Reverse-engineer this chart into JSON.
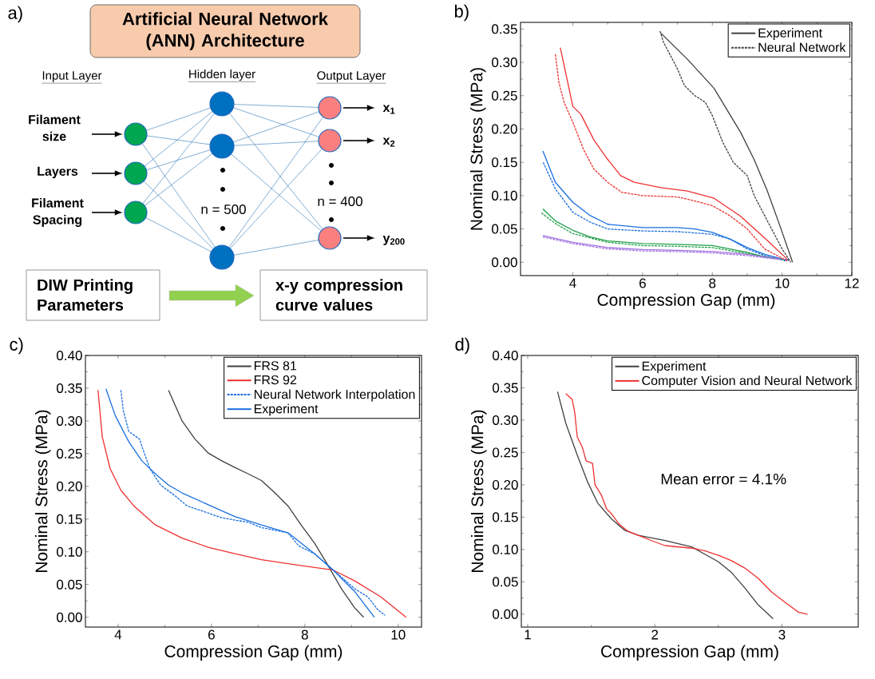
{
  "chart_data": [
    {
      "type": "other",
      "title": "Artificial Neural Network (ANN) Architecture",
      "annotations": [
        "a)",
        "Input Layer",
        "Hidden layer",
        "Output Layer",
        "Filament size",
        "Layers",
        "Filament Spacing",
        "n = 500",
        "n = 400",
        "x$_{1}$",
        "x$_{2}$",
        "y$_{200}$",
        "DIW Printing Parameters",
        "x-y compression curve values"
      ]
    },
    {
      "type": "line",
      "xlabel": "Compression Gap (mm)",
      "ylabel": "Nominal Stress (MPa)",
      "annotations": [
        "b)"
      ],
      "xlim": [
        2.5,
        12
      ],
      "ylim": [
        -0.02,
        0.36
      ],
      "xticks": [
        4,
        6,
        8,
        10,
        12
      ],
      "yticks": [
        {
          "value": 0,
          "label": "0.00"
        },
        {
          "value": 0.05,
          "label": "0.05"
        },
        {
          "value": 0.1,
          "label": "0.10"
        },
        {
          "value": 0.15,
          "label": "0.15"
        },
        {
          "value": 0.2,
          "label": "0.20"
        },
        {
          "value": 0.25,
          "label": "0.25"
        },
        {
          "value": 0.3,
          "label": "0.30"
        },
        {
          "value": 0.35,
          "label": "0.35"
        }
      ],
      "legend": "top right",
      "series": [
        {
          "name": "Experiment",
          "color": "#404040",
          "line_style": "solid",
          "x": [
            6.52,
            7.28,
            8.05,
            8.81,
            9.19,
            9.57,
            9.95,
            10.3
          ],
          "values": [
            0.344,
            0.305,
            0.261,
            0.195,
            0.155,
            0.108,
            0.053,
            0
          ]
        },
        {
          "name": "Neural Network",
          "color": "#404040",
          "line_style": "dashed",
          "x": [
            6.5,
            6.6,
            7.0,
            7.2,
            7.5,
            7.8,
            8.0,
            8.3,
            8.6,
            9.0,
            9.2,
            9.5,
            9.8,
            10.0,
            10.25
          ],
          "values": [
            0.347,
            0.33,
            0.29,
            0.265,
            0.25,
            0.24,
            0.22,
            0.18,
            0.15,
            0.13,
            0.1,
            0.07,
            0.04,
            0.02,
            0
          ]
        },
        {
          "color": "#f03030",
          "line_style": "solid",
          "x": [
            3.64,
            4.0,
            4.23,
            4.61,
            4.99,
            5.37,
            5.76,
            6.52,
            7.28,
            8.05,
            8.81,
            9.57,
            10.2
          ],
          "values": [
            0.322,
            0.234,
            0.222,
            0.183,
            0.155,
            0.13,
            0.12,
            0.112,
            0.107,
            0.096,
            0.069,
            0.033,
            0.002
          ]
        },
        {
          "color": "#1a6fdf",
          "line_style": "solid",
          "x": [
            3.14,
            3.5,
            4.0,
            4.5,
            5.0,
            6.0,
            7.0,
            7.5,
            8.0,
            8.5,
            9.0,
            9.5,
            10.0,
            10.2
          ],
          "values": [
            0.167,
            0.12,
            0.09,
            0.07,
            0.057,
            0.052,
            0.052,
            0.05,
            0.045,
            0.035,
            0.022,
            0.012,
            0.005,
            0.003
          ]
        },
        {
          "color": "#1a6fdf",
          "line_style": "dashed",
          "x": [
            3.15,
            3.5,
            4.0,
            4.5,
            5.0,
            6.0,
            7.0,
            8.0,
            8.5,
            9.0,
            9.5,
            10.1
          ],
          "values": [
            0.15,
            0.11,
            0.075,
            0.06,
            0.05,
            0.047,
            0.046,
            0.042,
            0.035,
            0.02,
            0.01,
            0.002
          ]
        },
        {
          "color": "#22a04a",
          "line_style": "solid",
          "x": [
            3.14,
            3.5,
            4.0,
            4.5,
            5.0,
            6.0,
            7.0,
            8.0,
            9.0,
            9.5,
            10.0
          ],
          "values": [
            0.08,
            0.062,
            0.048,
            0.038,
            0.032,
            0.028,
            0.027,
            0.025,
            0.015,
            0.008,
            0.004
          ]
        },
        {
          "color": "#22a04a",
          "line_style": "dashed",
          "x": [
            3.1,
            3.5,
            4.0,
            5.0,
            6.0,
            7.0,
            8.0,
            9.0,
            10.03
          ],
          "values": [
            0.074,
            0.058,
            0.043,
            0.03,
            0.025,
            0.024,
            0.022,
            0.013,
            0.004
          ]
        },
        {
          "color": "#a070e0",
          "line_style": "solid",
          "x": [
            3.14,
            4.0,
            5.0,
            6.0,
            7.0,
            8.0,
            9.0,
            9.5,
            10.0
          ],
          "values": [
            0.04,
            0.03,
            0.022,
            0.019,
            0.018,
            0.016,
            0.012,
            0.008,
            0.005
          ]
        },
        {
          "color": "#a070e0",
          "line_style": "dashed",
          "x": [
            3.14,
            4.0,
            5.0,
            6.0,
            7.0,
            8.0,
            9.0,
            9.95
          ],
          "values": [
            0.038,
            0.028,
            0.02,
            0.017,
            0.016,
            0.014,
            0.01,
            0.004
          ]
        },
        {
          "color": "#f03030",
          "line_style": "dashed",
          "x": [
            3.5,
            3.6,
            3.75,
            4.0,
            4.3,
            4.6,
            5.0,
            5.4,
            6.0,
            7.0,
            7.5,
            8.0,
            8.5,
            9.0,
            9.5,
            10.15
          ],
          "values": [
            0.312,
            0.27,
            0.24,
            0.21,
            0.17,
            0.14,
            0.12,
            0.105,
            0.1,
            0.098,
            0.092,
            0.085,
            0.07,
            0.05,
            0.02,
            0.002
          ]
        }
      ]
    },
    {
      "type": "line",
      "xlabel": "Compression Gap (mm)",
      "ylabel": "Nominal Stress (MPa)",
      "annotations": [
        "c)"
      ],
      "xlim": [
        3.3,
        10.5
      ],
      "ylim": [
        -0.015,
        0.4
      ],
      "xticks": [
        4,
        6,
        8,
        10
      ],
      "yticks": [
        {
          "value": 0,
          "label": "0.00"
        },
        {
          "value": 0.05,
          "label": "0.05"
        },
        {
          "value": 0.1,
          "label": "0.10"
        },
        {
          "value": 0.15,
          "label": "0.15"
        },
        {
          "value": 0.2,
          "label": "0.20"
        },
        {
          "value": 0.25,
          "label": "0.25"
        },
        {
          "value": 0.3,
          "label": "0.30"
        },
        {
          "value": 0.35,
          "label": "0.35"
        },
        {
          "value": 0.4,
          "label": "0.40"
        }
      ],
      "legend": "top right",
      "series": [
        {
          "name": "FRS 81",
          "color": "#404040",
          "line_style": "solid",
          "x": [
            5.08,
            5.37,
            5.65,
            5.93,
            6.22,
            6.5,
            6.79,
            7.07,
            7.36,
            7.64,
            7.92,
            8.21,
            8.49,
            8.78,
            9.06,
            9.26
          ],
          "values": [
            0.347,
            0.3,
            0.272,
            0.251,
            0.239,
            0.229,
            0.219,
            0.209,
            0.19,
            0.17,
            0.141,
            0.113,
            0.08,
            0.044,
            0.015,
            0
          ]
        },
        {
          "name": "FRS 92",
          "color": "#f03030",
          "line_style": "solid",
          "x": [
            3.57,
            3.66,
            3.83,
            4.06,
            4.34,
            4.8,
            5.37,
            5.93,
            6.5,
            7.07,
            7.64,
            8.21,
            8.61,
            9.06,
            9.63,
            10.17
          ],
          "values": [
            0.347,
            0.276,
            0.227,
            0.194,
            0.17,
            0.141,
            0.121,
            0.107,
            0.097,
            0.088,
            0.082,
            0.076,
            0.072,
            0.056,
            0.031,
            0
          ]
        },
        {
          "name": "Neural Network Interpolation",
          "color": "#1a6fdf",
          "line_style": "dashed",
          "x": [
            4.06,
            4.11,
            4.23,
            4.46,
            4.54,
            4.68,
            4.91,
            5.25,
            5.48,
            5.82,
            6.22,
            6.79,
            7.07,
            7.64,
            7.87,
            8.21,
            8.61,
            9.06,
            9.35,
            9.57,
            9.72
          ],
          "values": [
            0.347,
            0.316,
            0.284,
            0.272,
            0.255,
            0.227,
            0.202,
            0.184,
            0.17,
            0.162,
            0.152,
            0.145,
            0.137,
            0.129,
            0.109,
            0.097,
            0.072,
            0.044,
            0.031,
            0.011,
            0.003
          ]
        },
        {
          "name": "Experiment",
          "color": "#1a6fdf",
          "line_style": "solid",
          "x": [
            3.74,
            3.94,
            4.23,
            4.51,
            4.8,
            5.08,
            5.37,
            5.93,
            6.5,
            7.07,
            7.64,
            7.75,
            8.21,
            8.61,
            9.06,
            9.49
          ],
          "values": [
            0.349,
            0.308,
            0.268,
            0.239,
            0.219,
            0.202,
            0.19,
            0.172,
            0.154,
            0.141,
            0.129,
            0.123,
            0.097,
            0.072,
            0.04,
            0
          ]
        }
      ]
    },
    {
      "type": "line",
      "xlabel": "Compression Gap (mm)",
      "ylabel": "Nominal Stress (MPa)",
      "annotations": [
        "d)",
        "Mean error = 4.1%"
      ],
      "xlim": [
        0.95,
        3.6
      ],
      "ylim": [
        -0.02,
        0.4
      ],
      "xticks": [
        1,
        2,
        3
      ],
      "yticks": [
        {
          "value": 0,
          "label": "0.00"
        },
        {
          "value": 0.05,
          "label": "0.05"
        },
        {
          "value": 0.1,
          "label": "0.10"
        },
        {
          "value": 0.15,
          "label": "0.15"
        },
        {
          "value": 0.2,
          "label": "0.20"
        },
        {
          "value": 0.25,
          "label": "0.25"
        },
        {
          "value": 0.3,
          "label": "0.30"
        },
        {
          "value": 0.35,
          "label": "0.35"
        },
        {
          "value": 0.4,
          "label": "0.40"
        }
      ],
      "legend": "top right",
      "series": [
        {
          "name": "Experiment",
          "color": "#404040",
          "line_style": "solid",
          "x": [
            1.235,
            1.3,
            1.39,
            1.47,
            1.55,
            1.66,
            1.76,
            1.87,
            2.08,
            2.29,
            2.39,
            2.5,
            2.6,
            2.71,
            2.81,
            2.93
          ],
          "values": [
            0.344,
            0.295,
            0.246,
            0.205,
            0.172,
            0.147,
            0.13,
            0.122,
            0.114,
            0.104,
            0.093,
            0.081,
            0.065,
            0.04,
            0.015,
            -0.007
          ]
        },
        {
          "name": "Computer Vision and Neural Network",
          "color": "#f03030",
          "line_style": "solid",
          "x": [
            1.3,
            1.35,
            1.37,
            1.39,
            1.43,
            1.46,
            1.51,
            1.53,
            1.58,
            1.62,
            1.66,
            1.72,
            1.79,
            1.87,
            1.97,
            2.08,
            2.29,
            2.39,
            2.5,
            2.6,
            2.71,
            2.81,
            2.92,
            3.02,
            3.13,
            3.2
          ],
          "values": [
            0.341,
            0.332,
            0.312,
            0.274,
            0.258,
            0.237,
            0.233,
            0.2,
            0.184,
            0.163,
            0.155,
            0.139,
            0.128,
            0.122,
            0.114,
            0.106,
            0.102,
            0.098,
            0.091,
            0.083,
            0.071,
            0.056,
            0.034,
            0.019,
            0.003,
            0
          ]
        }
      ]
    }
  ]
}
